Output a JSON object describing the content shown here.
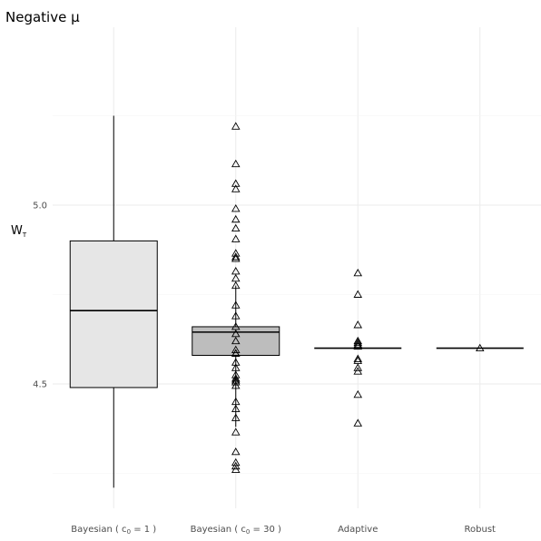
{
  "chart_data": {
    "type": "box",
    "title": "Negative μ",
    "ylabel": {
      "main": "W",
      "sub": "T"
    },
    "xlabel": "",
    "ylim": [
      4.25,
      5.4
    ],
    "yticks": [
      4.5,
      5.0
    ],
    "ytick_labels": [
      "4.5",
      "5.0"
    ],
    "grid": true,
    "categories": [
      {
        "pre": "Bayesian ( ",
        "sym": "c",
        "sub": "0",
        "post": " = 1 )"
      },
      {
        "pre": "Bayesian ( ",
        "sym": "c",
        "sub": "0",
        "post": " = 30 )"
      },
      {
        "pre": "Adaptive",
        "sym": "",
        "sub": "",
        "post": ""
      },
      {
        "pre": "Robust",
        "sym": "",
        "sub": "",
        "post": ""
      }
    ],
    "boxes": [
      {
        "whisker_low": 4.21,
        "q1": 4.49,
        "median": 4.705,
        "q3": 4.9,
        "whisker_high": 5.25,
        "fill": "#e6e6e6",
        "outliers": []
      },
      {
        "whisker_low": 4.38,
        "q1": 4.58,
        "median": 4.645,
        "q3": 4.66,
        "whisker_high": 4.775,
        "fill": "#bdbdbd",
        "outliers": [
          5.22,
          5.115,
          5.06,
          5.045,
          4.99,
          4.96,
          4.935,
          4.905,
          4.865,
          4.855,
          4.85,
          4.815,
          4.795,
          4.775,
          4.72,
          4.69,
          4.66,
          4.64,
          4.62,
          4.595,
          4.585,
          4.585,
          4.56,
          4.545,
          4.525,
          4.515,
          4.51,
          4.505,
          4.495,
          4.45,
          4.43,
          4.405,
          4.365,
          4.31,
          4.28,
          4.27,
          4.26
        ]
      },
      {
        "whisker_low": 4.6,
        "q1": 4.6,
        "median": 4.6,
        "q3": 4.6,
        "whisker_high": 4.6,
        "fill": "#ffffff",
        "outliers": [
          4.81,
          4.75,
          4.665,
          4.62,
          4.615,
          4.61,
          4.605,
          4.57,
          4.565,
          4.545,
          4.535,
          4.47,
          4.39
        ]
      },
      {
        "whisker_low": 4.6,
        "q1": 4.6,
        "median": 4.6,
        "q3": 4.6,
        "whisker_high": 4.6,
        "fill": "#ffffff",
        "outliers": [
          4.6
        ]
      }
    ]
  }
}
